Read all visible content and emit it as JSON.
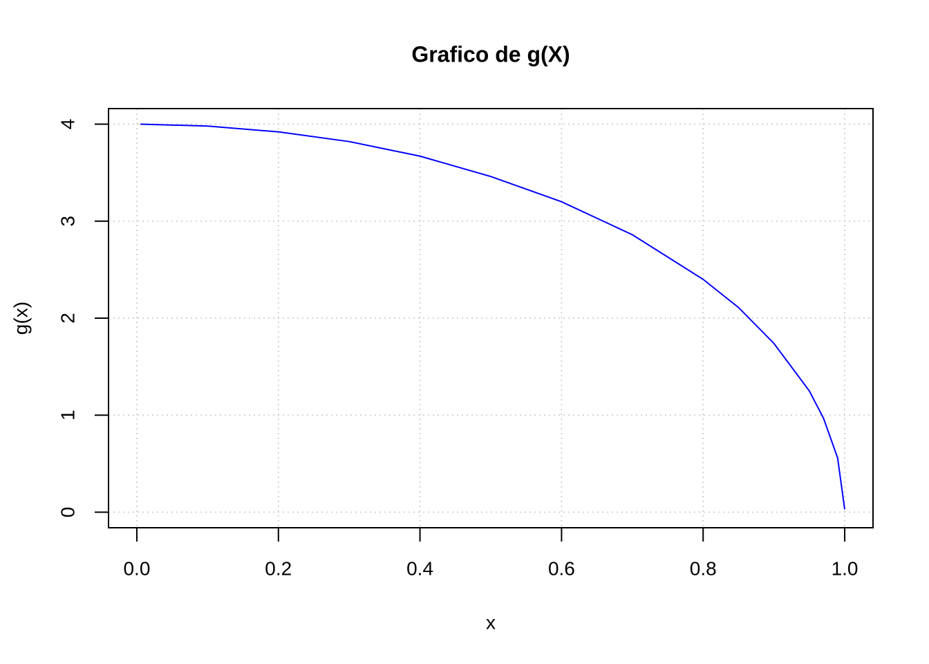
{
  "chart_data": {
    "type": "line",
    "title": "Grafico de g(X)",
    "x_label": "x",
    "y_label": "g(x)",
    "x": [
      0.005,
      0.1,
      0.2,
      0.3,
      0.4,
      0.5,
      0.6,
      0.7,
      0.8,
      0.85,
      0.9,
      0.95,
      0.97,
      0.99,
      1.0
    ],
    "series": [
      {
        "name": "g(x)",
        "color": "#0000ff",
        "values": [
          4.0,
          3.98,
          3.92,
          3.82,
          3.67,
          3.46,
          3.2,
          2.86,
          2.4,
          2.11,
          1.74,
          1.25,
          0.97,
          0.56,
          0.03
        ]
      }
    ],
    "xlim": [
      -0.04,
      1.04
    ],
    "ylim": [
      -0.16,
      4.16
    ],
    "xticks": [
      {
        "value": 0,
        "label": "0.0"
      },
      0.2,
      0.4,
      0.6,
      0.8,
      {
        "value": 1,
        "label": "1.0"
      }
    ],
    "yticks": [
      0,
      1,
      2,
      3,
      4
    ],
    "grid": true,
    "legend": false
  }
}
